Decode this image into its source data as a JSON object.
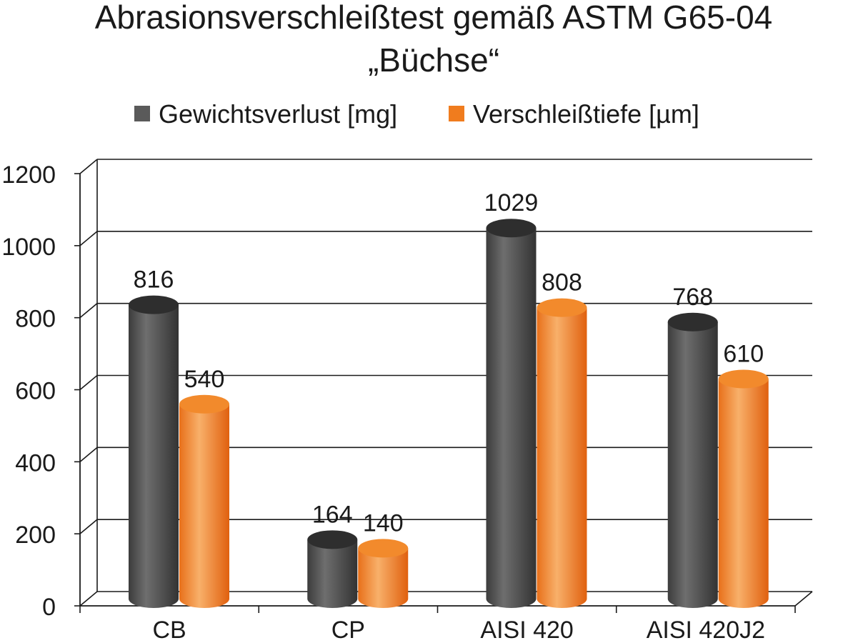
{
  "chart_data": {
    "type": "bar",
    "title": "Abrasionsverschleißtest gemäß ASTM G65-04",
    "subtitle": "„Büchse“",
    "categories": [
      "CB",
      "CP",
      "AISI 420",
      "AISI 420J2"
    ],
    "series": [
      {
        "name": "Gewichtsverlust [mg]",
        "values": [
          816,
          164,
          1029,
          768
        ],
        "color": "#5a5a5a"
      },
      {
        "name": "Verschleißtiefe [µm]",
        "values": [
          540,
          140,
          808,
          610
        ],
        "color": "#f07c1e"
      }
    ],
    "data_labels": [
      [
        "816",
        "164",
        "1029",
        "768"
      ],
      [
        "540",
        "140",
        "808",
        "610"
      ]
    ],
    "yticks": [
      "0",
      "200",
      "400",
      "600",
      "800",
      "1000",
      "1200"
    ],
    "ylim": [
      0,
      1200
    ],
    "grid": true,
    "legend": "top-center",
    "bar_style": "3d-cylinder"
  }
}
